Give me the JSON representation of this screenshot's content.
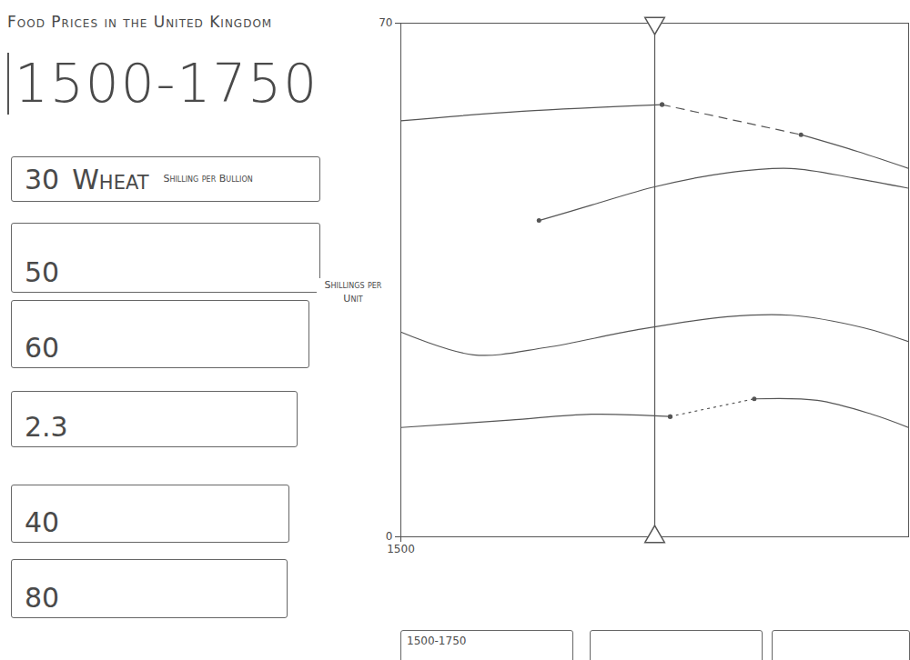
{
  "chart_data": {
    "type": "line",
    "title": "Food Prices in the United Kingdom",
    "y_label": "Shillings per Unit",
    "xlim": [
      1500,
      1750
    ],
    "xticks": [
      1500
    ],
    "ylim": [
      0,
      70
    ],
    "yticks": [
      0,
      70
    ],
    "grid": false,
    "cursor": 1625,
    "series": [
      {
        "color": "#555555",
        "line_style": "solid",
        "marker": "end",
        "x": [
          1500,
          1560,
          1628.6
        ],
        "values": [
          56.7,
          58.0,
          58.9
        ]
      },
      {
        "color": "#555555",
        "line_style": "dashed",
        "marker": "dot",
        "x": [
          1628.6,
          1697
        ],
        "values": [
          58.9,
          54.8
        ]
      },
      {
        "color": "#555555",
        "line_style": "solid",
        "marker": "none",
        "x": [
          1697,
          1725,
          1750
        ],
        "values": [
          54.8,
          52.5,
          50.2
        ]
      },
      {
        "color": "#555555",
        "line_style": "solid",
        "marker": "start",
        "x": [
          1568,
          1593.8,
          1625,
          1660.7,
          1692,
          1723,
          1750
        ],
        "values": [
          43.1,
          45.2,
          47.7,
          49.6,
          50.2,
          48.9,
          47.5
        ]
      },
      {
        "color": "#555555",
        "line_style": "solid",
        "marker": "none",
        "x": [
          1500,
          1535.7,
          1571.4,
          1616,
          1660.7,
          1692,
          1727.7,
          1750
        ],
        "values": [
          27.9,
          24.8,
          25.8,
          28.2,
          30.0,
          30.2,
          28.5,
          26.6
        ]
      },
      {
        "color": "#555555",
        "line_style": "solid",
        "marker": "end",
        "x": [
          1500,
          1553.6,
          1593.8,
          1632.6
        ],
        "values": [
          14.9,
          15.9,
          16.7,
          16.4
        ]
      },
      {
        "color": "#555555",
        "line_style": "dotted",
        "marker": "dot",
        "x": [
          1632.6,
          1674
        ],
        "values": [
          16.4,
          18.8
        ]
      },
      {
        "color": "#555555",
        "line_style": "solid",
        "marker": "none",
        "x": [
          1674,
          1705,
          1732,
          1750
        ],
        "values": [
          18.8,
          18.6,
          16.7,
          14.9
        ]
      }
    ]
  },
  "header": {
    "period": "1500-1750"
  },
  "sidebar": [
    {
      "value": 30,
      "label": "Wheat",
      "unit": "Shilling per Bullion"
    },
    {
      "value": 50
    },
    {
      "value": 60
    },
    {
      "value": 2.3
    },
    {
      "value": 40
    },
    {
      "value": 80
    }
  ],
  "tabs": [
    "1500-1750"
  ]
}
